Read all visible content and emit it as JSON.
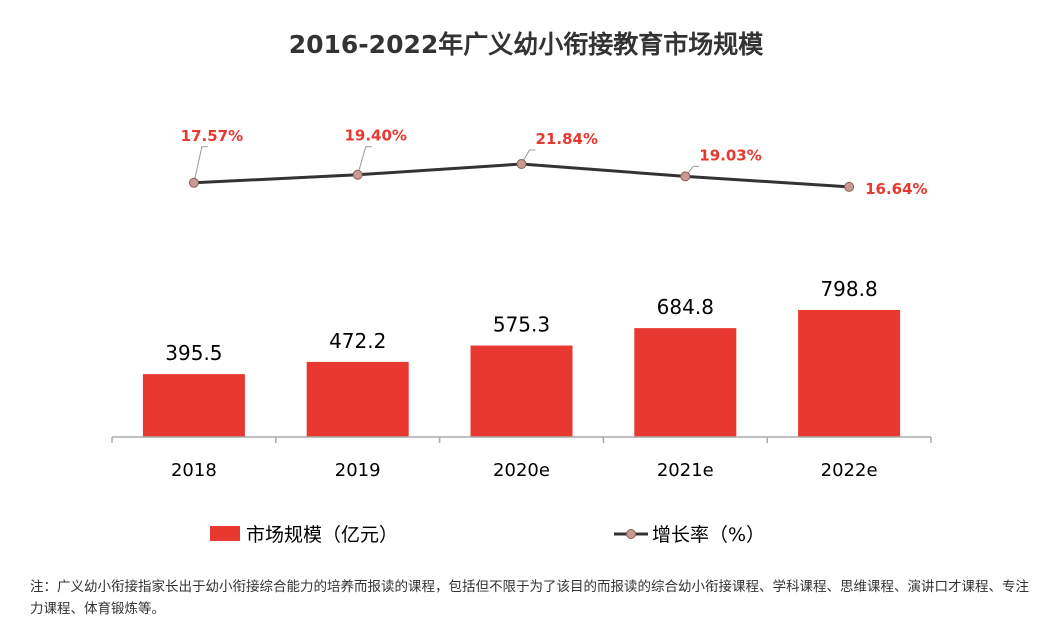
{
  "colors": {
    "bar": "#e8382f",
    "line": "#333333",
    "marker_fill": "#c99a93",
    "rate_label": "#e8382f",
    "axis": "#aaaaaa"
  },
  "chart_data": {
    "type": "bar+line",
    "title": "2016-2022年广义幼小衔接教育市场规模",
    "categories": [
      "2018",
      "2019",
      "2020e",
      "2021e",
      "2022e"
    ],
    "series": [
      {
        "name": "市场规模（亿元）",
        "type": "bar",
        "values": [
          395.5,
          472.2,
          575.3,
          684.8,
          798.8
        ],
        "labels": [
          "395.5",
          "472.2",
          "575.3",
          "684.8",
          "798.8"
        ]
      },
      {
        "name": "增长率（%）",
        "type": "line",
        "values": [
          17.57,
          19.4,
          21.84,
          19.03,
          16.64
        ],
        "labels": [
          "17.57%",
          "19.40%",
          "21.84%",
          "19.03%",
          "16.64%"
        ]
      }
    ],
    "legend_position": "bottom",
    "grid": false
  },
  "note": "注：广义幼小衔接指家长出于幼小衔接综合能力的培养而报读的课程，包括但不限于为了该目的而报读的综合幼小衔接课程、学科课程、思维课程、演讲口才课程、专注力课程、体育锻炼等。"
}
